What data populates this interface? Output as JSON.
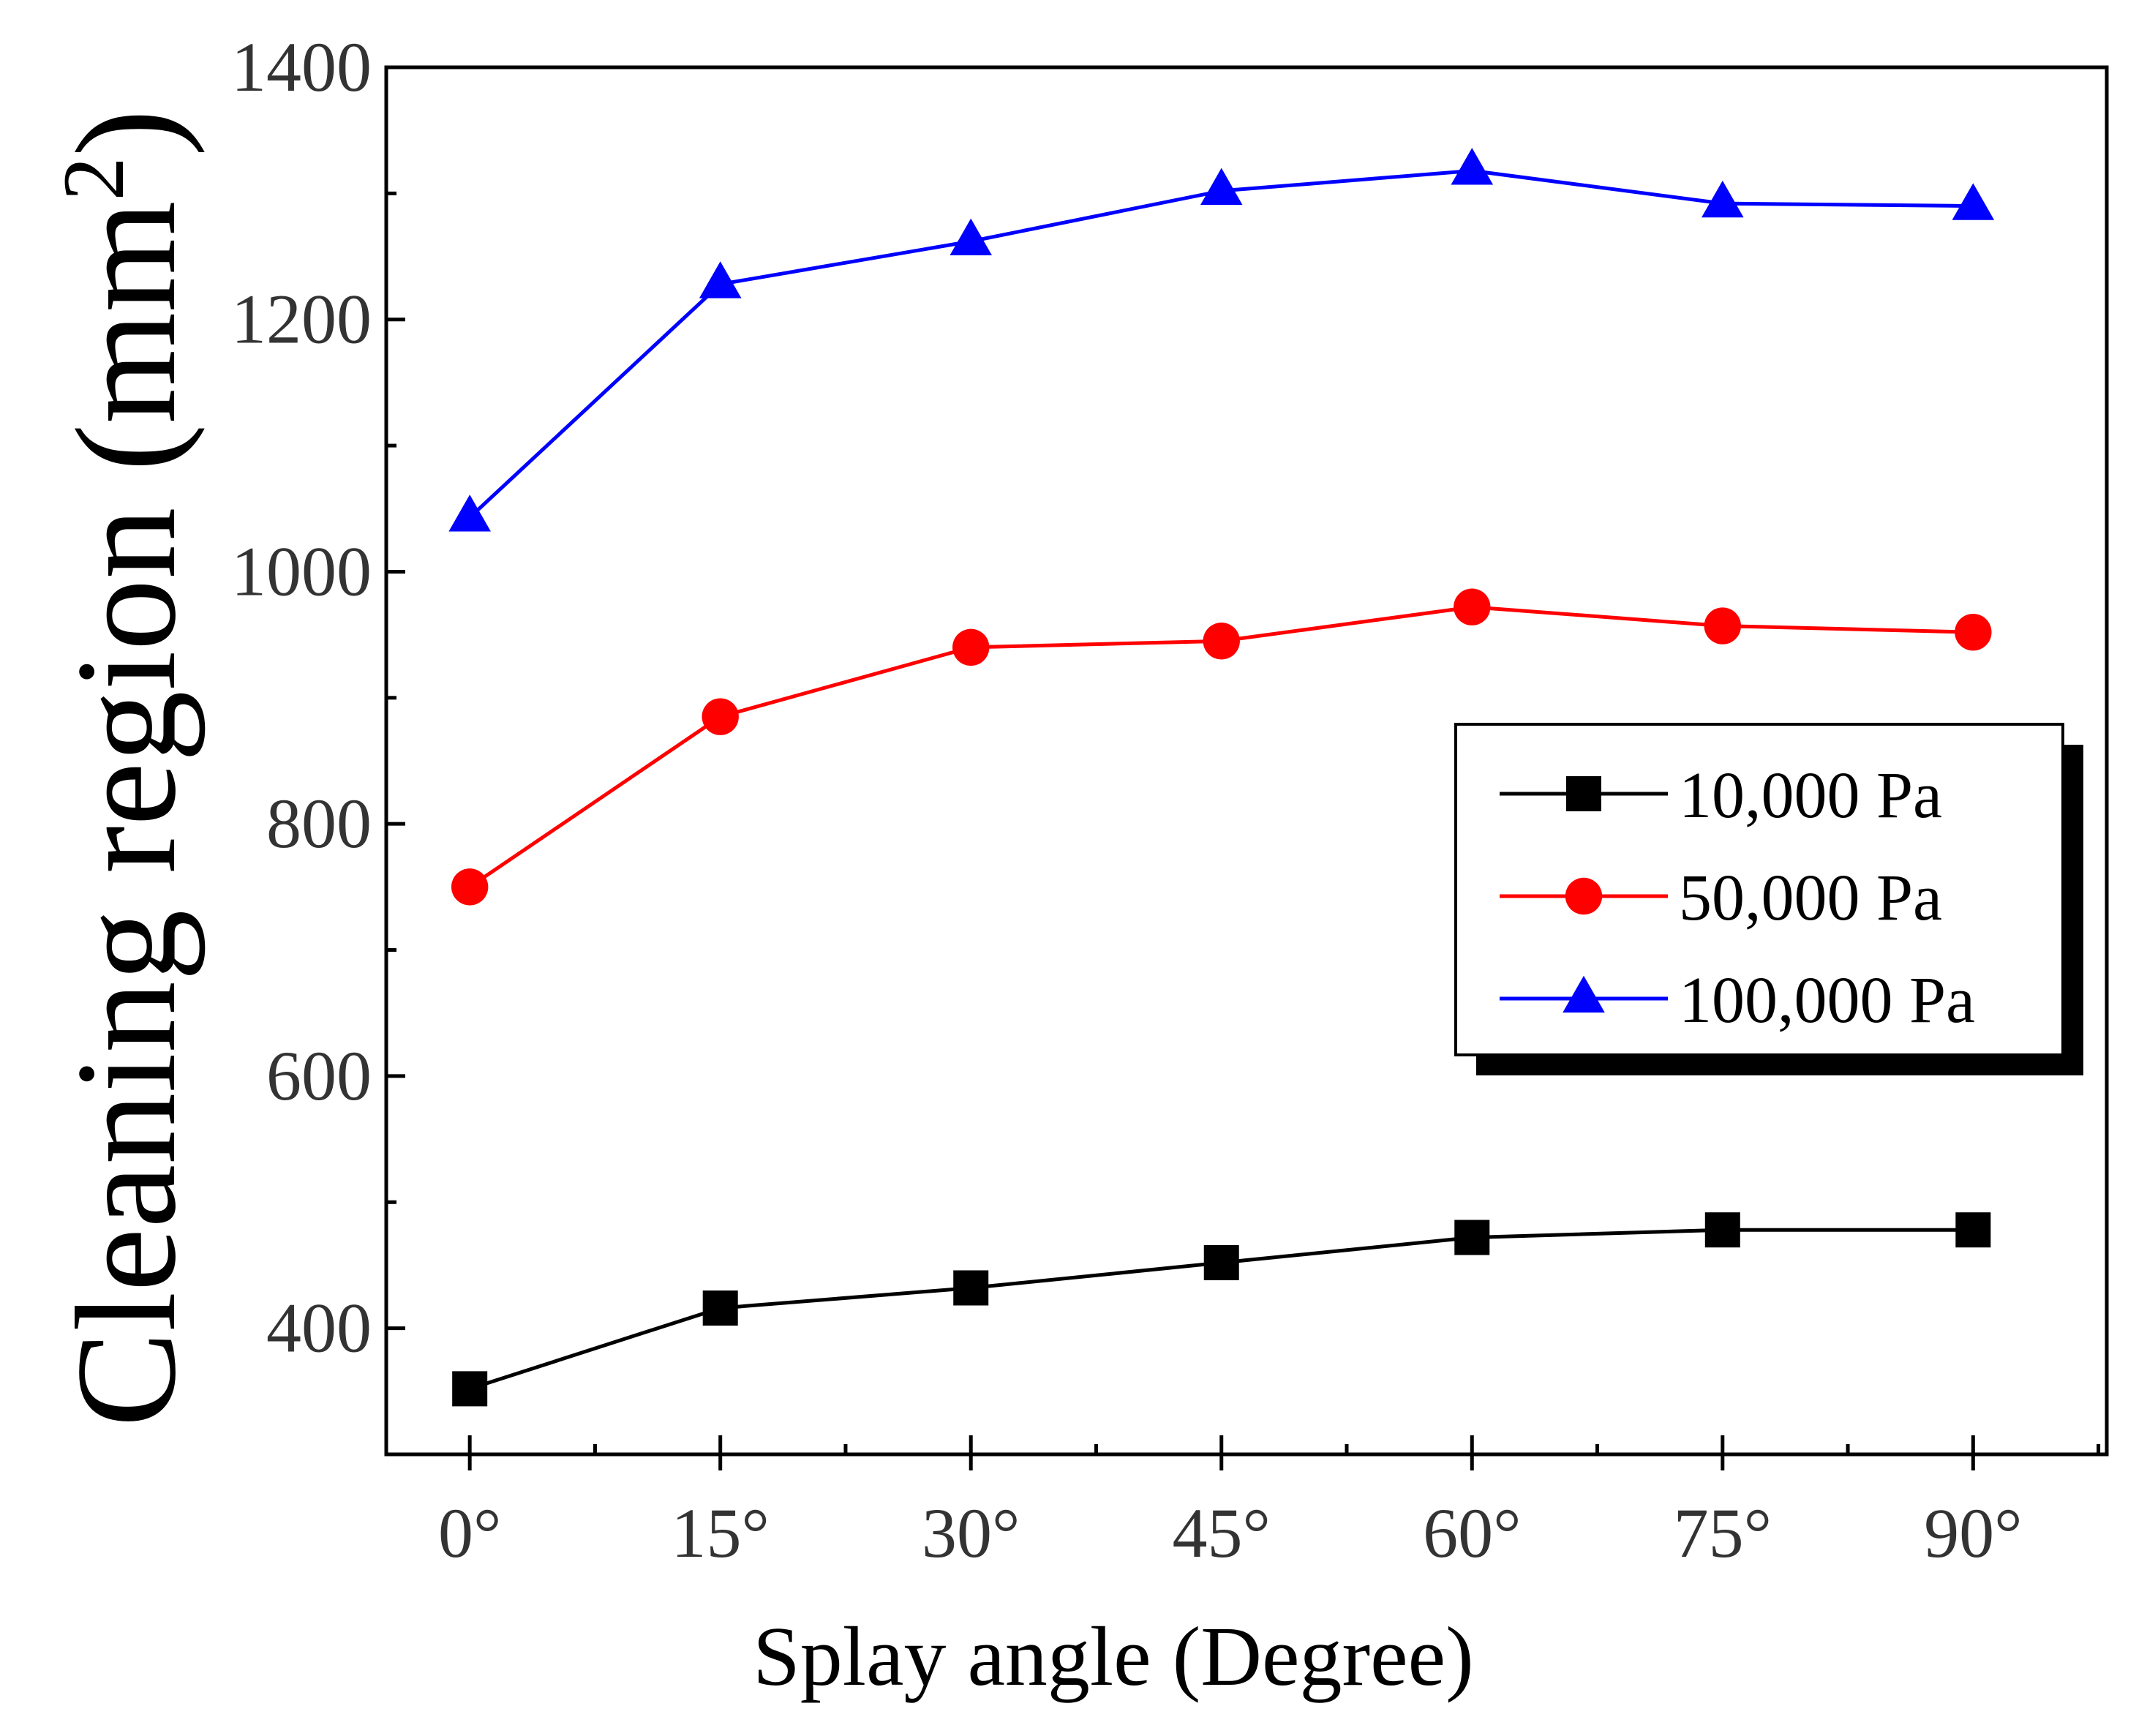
{
  "chart_data": {
    "type": "line",
    "title": "",
    "xlabel": "Splay angle (Degree)",
    "ylabel_main": "Cleaning region (mm",
    "ylabel_sup": "2",
    "ylabel_close": ")",
    "categories": [
      "0°",
      "15°",
      "30°",
      "45°",
      "60°",
      "75°",
      "90°"
    ],
    "x": [
      0,
      15,
      30,
      45,
      60,
      75,
      90
    ],
    "xlim": [
      -5,
      98
    ],
    "ylim": [
      300,
      1400
    ],
    "yticks": [
      400,
      600,
      800,
      1000,
      1200,
      1400
    ],
    "grid": false,
    "legend_position": "center-right",
    "series": [
      {
        "name": "10,000 Pa",
        "color": "#000000",
        "marker": "square",
        "values": [
          352,
          416,
          432,
          452,
          472,
          478,
          478
        ]
      },
      {
        "name": "50,000 Pa",
        "color": "#ff0000",
        "marker": "circle",
        "values": [
          750,
          885,
          940,
          945,
          972,
          957,
          952
        ]
      },
      {
        "name": "100,000 Pa",
        "color": "#0000ff",
        "marker": "triangle",
        "values": [
          1043,
          1228,
          1262,
          1302,
          1318,
          1292,
          1290
        ]
      }
    ]
  }
}
